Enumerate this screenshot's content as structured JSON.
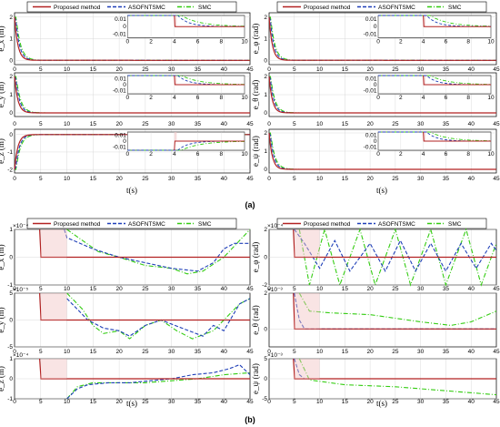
{
  "colors": {
    "proposed": "#b22222",
    "asofntsmc": "#1f3fb8",
    "smc": "#33cc11",
    "shade": "#f2c4c4",
    "grid": "#d0d0d0"
  },
  "legend": {
    "labels": [
      "Proposed method",
      "ASOFNTSMC",
      "SMC"
    ]
  },
  "panel_labels": {
    "a": "(a)",
    "b": "(b)"
  },
  "xlabel": "t(s)",
  "x_ticks": [
    "0",
    "5",
    "10",
    "15",
    "20",
    "25",
    "30",
    "35",
    "40",
    "45"
  ],
  "inset_x_ticks": [
    "0",
    "2",
    "4",
    "6",
    "8",
    "10"
  ],
  "chart_data": [
    {
      "id": "a-left",
      "type": "line",
      "ylabels": [
        "e_x (m)",
        "e_y (m)",
        "e_z (m)"
      ],
      "rows": [
        {
          "ylim": [
            -0.2,
            2.2
          ],
          "yticks": [
            "0",
            "1",
            "2"
          ],
          "start": 2,
          "inset": {
            "ylim": [
              -0.015,
              0.015
            ],
            "yticks": [
              "0.01",
              "0",
              "-0.01"
            ]
          }
        },
        {
          "ylim": [
            -0.2,
            2.2
          ],
          "yticks": [
            "0",
            "1",
            "2"
          ],
          "start": 2,
          "inset": {
            "ylim": [
              -0.015,
              0.015
            ],
            "yticks": [
              "0.01",
              "0",
              "-0.01"
            ]
          }
        },
        {
          "ylim": [
            -2.2,
            0.3
          ],
          "yticks": [
            "0",
            "-1",
            "-2"
          ],
          "start": -2,
          "inset": {
            "ylim": [
              -0.015,
              0.015
            ],
            "yticks": [
              "0.01",
              "0",
              "-0.01"
            ]
          }
        }
      ]
    },
    {
      "id": "a-right",
      "type": "line",
      "ylabels": [
        "e_φ (rad)",
        "e_θ (rad)",
        "e_ψ (rad)"
      ],
      "rows": [
        {
          "ylim": [
            -0.2,
            2.2
          ],
          "yticks": [
            "0",
            "1",
            "2"
          ],
          "start": 2,
          "inset": {
            "ylim": [
              -0.015,
              0.015
            ],
            "yticks": [
              "0.01",
              "0",
              "-0.01"
            ]
          }
        },
        {
          "ylim": [
            -0.2,
            2.2
          ],
          "yticks": [
            "0",
            "1",
            "2"
          ],
          "start": 2,
          "inset": {
            "ylim": [
              -0.015,
              0.015
            ],
            "yticks": [
              "0.01",
              "0",
              "-0.01"
            ]
          }
        },
        {
          "ylim": [
            -0.2,
            2.2
          ],
          "yticks": [
            "0",
            "1",
            "2"
          ],
          "start": 2,
          "inset": {
            "ylim": [
              -0.015,
              0.015
            ],
            "yticks": [
              "0.01",
              "0",
              "-0.01"
            ]
          }
        }
      ]
    },
    {
      "id": "b-left",
      "type": "line",
      "ylabels": [
        "e_x (m)",
        "e_y (m)",
        "e_z (m)"
      ],
      "rows": [
        {
          "exp": "×10⁻⁴",
          "ylim": [
            -1,
            1
          ],
          "yticks": [
            "1",
            "0",
            "-1"
          ],
          "proposed": [
            [
              4.8,
              1
            ],
            [
              5.05,
              0
            ],
            [
              45,
              0
            ]
          ],
          "asofntsmc": [
            [
              9.5,
              1
            ],
            [
              10,
              0.7
            ],
            [
              15,
              0.3
            ],
            [
              20,
              0
            ],
            [
              25,
              -0.2
            ],
            [
              30,
              -0.4
            ],
            [
              35,
              -0.5
            ],
            [
              38,
              -0.2
            ],
            [
              40,
              0.3
            ],
            [
              42,
              0.5
            ],
            [
              45,
              0.5
            ]
          ],
          "smc": [
            [
              10,
              1
            ],
            [
              13,
              0.6
            ],
            [
              16,
              0.2
            ],
            [
              20,
              0
            ],
            [
              25,
              -0.3
            ],
            [
              30,
              -0.4
            ],
            [
              33,
              -0.6
            ],
            [
              36,
              -0.5
            ],
            [
              40,
              0
            ],
            [
              43,
              0.6
            ],
            [
              45,
              1
            ]
          ]
        },
        {
          "exp": "×10⁻⁵",
          "ylim": [
            -5,
            5
          ],
          "yticks": [
            "5",
            "0",
            "-5"
          ],
          "proposed": [
            [
              4.8,
              5
            ],
            [
              5.05,
              0
            ],
            [
              45,
              0
            ]
          ],
          "asofntsmc": [
            [
              10,
              4
            ],
            [
              14,
              0
            ],
            [
              17,
              -1.5
            ],
            [
              20,
              -2
            ],
            [
              22,
              -3
            ],
            [
              25,
              -1
            ],
            [
              28,
              0
            ],
            [
              32,
              -1.5
            ],
            [
              36,
              -3
            ],
            [
              38,
              -1
            ],
            [
              40,
              -2
            ],
            [
              43,
              3
            ],
            [
              45,
              4
            ]
          ],
          "smc": [
            [
              10,
              5
            ],
            [
              13,
              2
            ],
            [
              15,
              -1
            ],
            [
              17,
              -2.5
            ],
            [
              20,
              -2
            ],
            [
              22,
              -3.5
            ],
            [
              25,
              -1
            ],
            [
              28,
              0
            ],
            [
              31,
              -2
            ],
            [
              34,
              -3.5
            ],
            [
              38,
              -2
            ],
            [
              41,
              1
            ],
            [
              43,
              3
            ],
            [
              45,
              4
            ]
          ]
        },
        {
          "exp": "×10⁻⁴",
          "ylim": [
            -1,
            1
          ],
          "yticks": [
            "1",
            "0",
            "-1"
          ],
          "proposed": [
            [
              4.8,
              1
            ],
            [
              5.05,
              0
            ],
            [
              45,
              0
            ]
          ],
          "asofntsmc": [
            [
              10,
              -1
            ],
            [
              12,
              -0.5
            ],
            [
              14,
              -0.3
            ],
            [
              18,
              -0.2
            ],
            [
              22,
              -0.2
            ],
            [
              26,
              -0.1
            ],
            [
              30,
              0
            ],
            [
              34,
              0.2
            ],
            [
              38,
              0.3
            ],
            [
              41,
              0.5
            ],
            [
              43,
              0.7
            ],
            [
              45,
              0.2
            ]
          ],
          "smc": [
            [
              10,
              -1
            ],
            [
              12,
              -0.4
            ],
            [
              15,
              -0.2
            ],
            [
              20,
              -0.2
            ],
            [
              25,
              -0.2
            ],
            [
              30,
              -0.1
            ],
            [
              35,
              0
            ],
            [
              40,
              0.2
            ],
            [
              45,
              0.3
            ]
          ]
        }
      ]
    },
    {
      "id": "b-right",
      "type": "line",
      "ylabels": [
        "e_φ (rad)",
        "e_θ (rad)",
        "e_ψ (rad)"
      ],
      "rows": [
        {
          "exp": "×10⁻⁴",
          "ylim": [
            -2,
            2
          ],
          "yticks": [
            "2",
            "0",
            "-2"
          ],
          "proposed": [
            [
              4.8,
              2
            ],
            [
              5.05,
              0
            ],
            [
              45,
              0
            ]
          ],
          "asofntsmc": [
            [
              5,
              2
            ],
            [
              7,
              1
            ],
            [
              10,
              -0.8
            ],
            [
              13,
              1.2
            ],
            [
              16,
              -1
            ],
            [
              20,
              1
            ],
            [
              23,
              -1
            ],
            [
              26,
              1.2
            ],
            [
              29,
              -1
            ],
            [
              32,
              1
            ],
            [
              35,
              -1
            ],
            [
              38,
              1
            ],
            [
              41,
              -0.8
            ],
            [
              44,
              1
            ],
            [
              45,
              0.5
            ]
          ],
          "smc": [
            [
              6,
              2
            ],
            [
              8,
              -2
            ],
            [
              11,
              2
            ],
            [
              14,
              -2
            ],
            [
              18,
              2
            ],
            [
              21,
              -2
            ],
            [
              25,
              2
            ],
            [
              28,
              -2
            ],
            [
              32,
              2
            ],
            [
              35,
              -2
            ],
            [
              39,
              2
            ],
            [
              42,
              -2
            ],
            [
              45,
              1
            ]
          ]
        },
        {
          "exp": "×10⁻³",
          "ylim": [
            -1,
            2
          ],
          "yticks": [
            "2",
            "0"
          ],
          "proposed": [
            [
              4.8,
              2
            ],
            [
              5.05,
              0
            ],
            [
              45,
              0
            ]
          ],
          "asofntsmc": [
            [
              5,
              2
            ],
            [
              6,
              0.5
            ],
            [
              7,
              0
            ],
            [
              45,
              0
            ]
          ],
          "smc": [
            [
              6,
              2
            ],
            [
              8,
              1
            ],
            [
              12,
              0.9
            ],
            [
              20,
              0.8
            ],
            [
              30,
              0.4
            ],
            [
              36,
              0.2
            ],
            [
              40,
              0.4
            ],
            [
              45,
              1
            ]
          ]
        },
        {
          "exp": "×10⁻³",
          "ylim": [
            -5,
            5
          ],
          "yticks": [
            "5",
            "0",
            "-5"
          ],
          "proposed": [
            [
              4.8,
              5
            ],
            [
              5.05,
              0
            ],
            [
              45,
              0
            ]
          ],
          "asofntsmc": [
            [
              5,
              5
            ],
            [
              6,
              1
            ],
            [
              7,
              0
            ],
            [
              45,
              0
            ]
          ],
          "smc": [
            [
              6,
              5
            ],
            [
              8,
              -0.3
            ],
            [
              15,
              -1.5
            ],
            [
              25,
              -2
            ],
            [
              35,
              -3
            ],
            [
              45,
              -4
            ]
          ]
        }
      ]
    }
  ]
}
